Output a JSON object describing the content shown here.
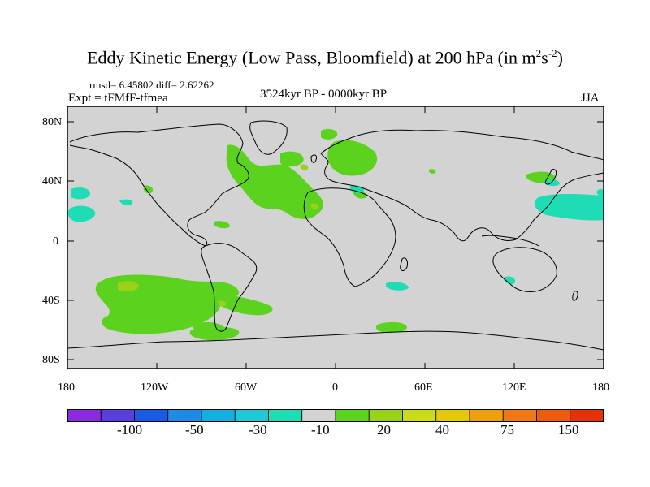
{
  "header": {
    "title_main": "Eddy Kinetic Energy (Low Pass, Bloomfield) at 200 hPa (in m",
    "title_sup1": "2",
    "title_mid": "s",
    "title_sup2": "-2",
    "title_end": ")",
    "stats": "rmsd= 6.45802 diff= 2.62262",
    "expt": "Expt = tFMfF-tfmea",
    "period": "3524kyr BP - 0000kyr BP",
    "season": "JJA"
  },
  "axes": {
    "lat_labels": [
      "80N",
      "40N",
      "0",
      "40S",
      "80S"
    ],
    "lon_labels": [
      "180",
      "120W",
      "60W",
      "0",
      "60E",
      "120E",
      "180"
    ]
  },
  "colorbar": {
    "colors": [
      "#8a2be2",
      "#5a3ee0",
      "#1a5ae6",
      "#1e8ce6",
      "#14aee0",
      "#1ec8d8",
      "#1edcb4",
      "#d3d3d3",
      "#5ad21e",
      "#9ad21a",
      "#cadc14",
      "#e6c80a",
      "#eea00a",
      "#f07814",
      "#ee5a0e",
      "#e6320a"
    ],
    "labels": [
      "-100",
      "-50",
      "-30",
      "-10",
      "20",
      "40",
      "75",
      "150"
    ]
  },
  "map_data": {
    "background_color": "#d3d3d3",
    "fields": [
      {
        "name": "south-pacific-positive",
        "level": "20",
        "color": "#5ad21e"
      },
      {
        "name": "north-atlantic-positive",
        "level": "20",
        "color": "#5ad21e"
      },
      {
        "name": "local-maxima",
        "level": "40",
        "color": "#9ad21a"
      },
      {
        "name": "negative-anomalies",
        "level": "-10",
        "color": "#1edcb4"
      }
    ]
  }
}
